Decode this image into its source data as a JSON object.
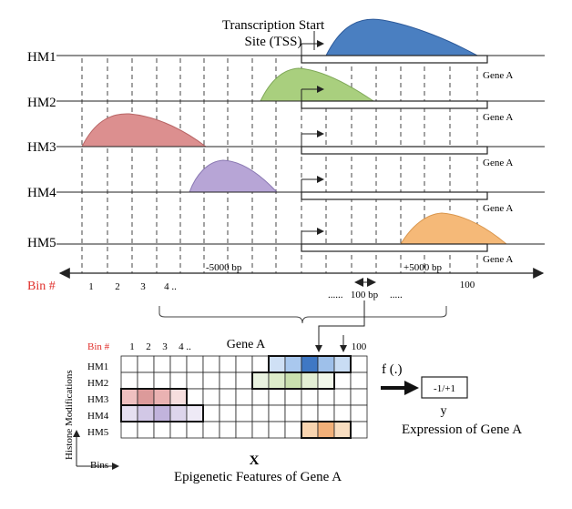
{
  "title_tss": [
    "Transcription Start",
    "Site (TSS)"
  ],
  "tracks": [
    {
      "label": "HM1",
      "color": "#4a7fc1"
    },
    {
      "label": "HM2",
      "color": "#a9cf7e"
    },
    {
      "label": "HM3",
      "color": "#dc8f8f"
    },
    {
      "label": "HM4",
      "color": "#b7a5d6"
    },
    {
      "label": "HM5",
      "color": "#f5b978"
    }
  ],
  "gene_label": "Gene A",
  "bin_axis_label": "Bin #",
  "bin_ticks": [
    "1",
    "2",
    "3",
    "4 ..",
    "100"
  ],
  "upstream_label": "-5000 bp",
  "downstream_label": "+5000 bp",
  "bin_width_label": "100 bp",
  "ellipsis_left": "......",
  "ellipsis_right": ".....",
  "matrix": {
    "bin_label": "Bin #",
    "col_ticks": [
      "1",
      "2",
      "3",
      "4 ..",
      "100"
    ],
    "title": "Gene A",
    "rows": [
      "HM1",
      "HM2",
      "HM3",
      "HM4",
      "HM5"
    ],
    "y_axis": "Histone Modifications",
    "x_axis": "Bins",
    "x_symbol": "X",
    "caption": "Epigenetic Features of Gene A"
  },
  "function_label": "f (.)",
  "output_value": "-1/+1",
  "output_symbol": "y",
  "output_caption": "Expression of Gene A"
}
